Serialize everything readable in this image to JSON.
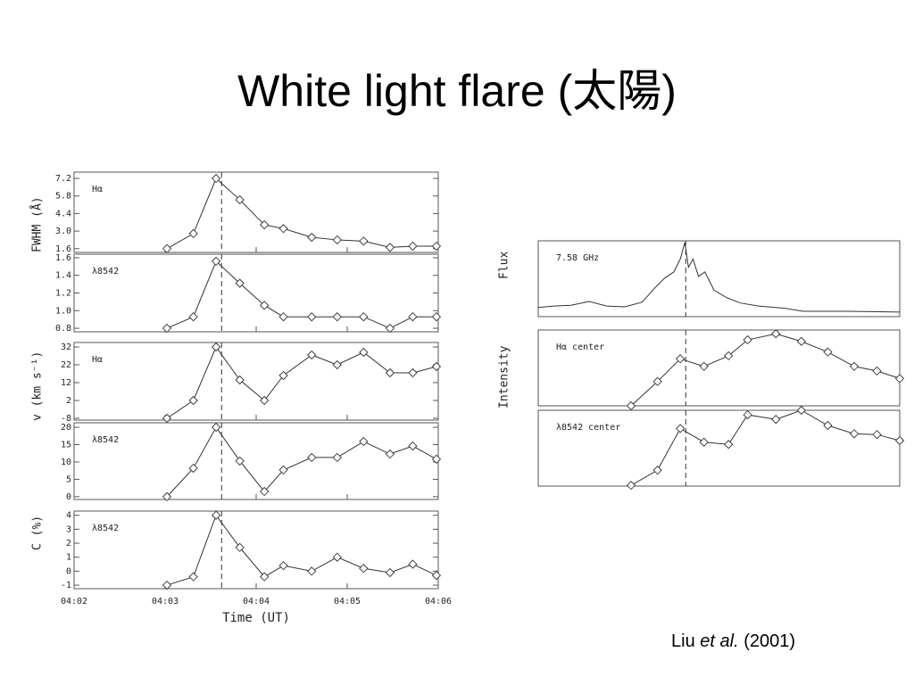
{
  "title": "White light flare (太陽)",
  "citation": {
    "author": "Liu",
    "etal": "et al.",
    "year": "(2001)"
  },
  "chart_data": [
    {
      "type": "line",
      "label": "Hα",
      "ylabel": "FWHM (Å)",
      "marker_x": 3.62,
      "x": [
        3.02,
        3.31,
        3.56,
        3.82,
        4.09,
        4.3,
        4.61,
        4.89,
        5.18,
        5.47,
        5.72,
        5.98
      ],
      "values": [
        1.6,
        2.8,
        7.2,
        5.5,
        3.5,
        3.2,
        2.5,
        2.3,
        2.2,
        1.7,
        1.8,
        1.8
      ],
      "xlim": [
        2,
        6
      ],
      "ylim": [
        1.3,
        7.7
      ],
      "yticks": [
        1.6,
        {
          "value": 3,
          "label": "3.0"
        },
        4.4,
        5.8,
        7.2
      ]
    },
    {
      "type": "line",
      "label": "λ8542",
      "marker_x": 3.62,
      "x": [
        3.02,
        3.31,
        3.56,
        3.82,
        4.09,
        4.3,
        4.61,
        4.89,
        5.18,
        5.47,
        5.72,
        5.98
      ],
      "values": [
        0.8,
        0.93,
        1.56,
        1.31,
        1.06,
        0.93,
        0.93,
        0.93,
        0.93,
        0.8,
        0.93,
        0.93
      ],
      "xlim": [
        2,
        6
      ],
      "ylim": [
        0.76,
        1.64
      ],
      "yticks": [
        0.8,
        {
          "value": 1,
          "label": "1.0"
        },
        1.2,
        1.4,
        1.6
      ]
    },
    {
      "type": "line",
      "label": "Hα",
      "ylabel": "v (km s⁻¹)",
      "marker_x": 3.62,
      "x": [
        3.02,
        3.31,
        3.56,
        3.82,
        4.09,
        4.3,
        4.61,
        4.89,
        5.18,
        5.47,
        5.72,
        5.98
      ],
      "values": [
        -8,
        2,
        32,
        13.5,
        2,
        16,
        27.5,
        22,
        29,
        17.5,
        17.5,
        21
      ],
      "xlim": [
        2,
        6
      ],
      "ylim": [
        -9,
        34.5
      ],
      "yticks": [
        -8,
        2,
        12,
        22,
        32
      ]
    },
    {
      "type": "line",
      "label": "λ8542",
      "marker_x": 3.62,
      "x": [
        3.02,
        3.31,
        3.56,
        3.82,
        4.09,
        4.3,
        4.61,
        4.89,
        5.18,
        5.47,
        5.72,
        5.98
      ],
      "values": [
        0,
        8.2,
        20,
        10.3,
        1.5,
        7.7,
        11.3,
        11.3,
        15.9,
        12.3,
        14.6,
        10.8
      ],
      "xlim": [
        2,
        6
      ],
      "ylim": [
        -0.8,
        21.3
      ],
      "yticks": [
        0,
        5,
        10,
        15,
        20
      ]
    },
    {
      "type": "line",
      "label": "λ8542",
      "ylabel": "C (%)",
      "xlabel": "Time (UT)",
      "marker_x": 3.62,
      "x": [
        3.02,
        3.31,
        3.56,
        3.82,
        4.09,
        4.3,
        4.61,
        4.89,
        5.18,
        5.47,
        5.72,
        5.98
      ],
      "values": [
        -1,
        -0.4,
        4,
        1.7,
        -0.4,
        0.4,
        0,
        1,
        0.2,
        -0.1,
        0.5,
        -0.3
      ],
      "xlim": [
        2,
        6
      ],
      "ylim": [
        -1.25,
        4.3
      ],
      "yticks": [
        -1,
        0,
        1,
        2,
        3,
        4
      ],
      "xticks": [
        {
          "value": 2,
          "label": "04:02"
        },
        {
          "value": 3,
          "label": "04:03"
        },
        {
          "value": 4,
          "label": "04:04"
        },
        {
          "value": 5,
          "label": "04:05"
        },
        {
          "value": 6,
          "label": "04:06"
        }
      ]
    },
    {
      "type": "trace",
      "label": "7.58 GHz",
      "ylabel": "Flux",
      "marker_x": 3.62,
      "x": [
        2.0,
        2.17,
        2.36,
        2.56,
        2.75,
        2.95,
        3.14,
        3.29,
        3.39,
        3.49,
        3.56,
        3.61,
        3.65,
        3.7,
        3.76,
        3.83,
        3.93,
        4.07,
        4.22,
        4.42,
        4.71,
        4.91,
        5.4,
        5.97
      ],
      "values": [
        0.12,
        0.14,
        0.15,
        0.2,
        0.14,
        0.13,
        0.19,
        0.39,
        0.51,
        0.59,
        0.76,
        0.98,
        0.65,
        0.76,
        0.53,
        0.59,
        0.35,
        0.25,
        0.18,
        0.14,
        0.11,
        0.07,
        0.07,
        0.06
      ],
      "xlim": [
        2,
        5.97
      ],
      "ylim": [
        0,
        1
      ]
    },
    {
      "type": "line",
      "label": "Hα center",
      "ylabel": "Intensity",
      "marker_x": 3.62,
      "x": [
        3.02,
        3.31,
        3.56,
        3.82,
        4.09,
        4.3,
        4.61,
        4.89,
        5.18,
        5.47,
        5.72,
        5.97
      ],
      "values": [
        0,
        0.32,
        0.62,
        0.52,
        0.66,
        0.87,
        0.95,
        0.85,
        0.71,
        0.52,
        0.46,
        0.36
      ],
      "xlim": [
        2,
        5.97
      ],
      "ylim": [
        0,
        1
      ]
    },
    {
      "type": "line",
      "label": "λ8542 center",
      "marker_x": 3.62,
      "x": [
        3.02,
        3.31,
        3.56,
        3.82,
        4.09,
        4.3,
        4.61,
        4.89,
        5.18,
        5.47,
        5.72,
        5.97
      ],
      "values": [
        0.01,
        0.21,
        0.76,
        0.58,
        0.55,
        0.94,
        0.88,
        1.0,
        0.8,
        0.69,
        0.68,
        0.6
      ],
      "xlim": [
        2,
        5.97
      ],
      "ylim": [
        0,
        1
      ]
    }
  ]
}
